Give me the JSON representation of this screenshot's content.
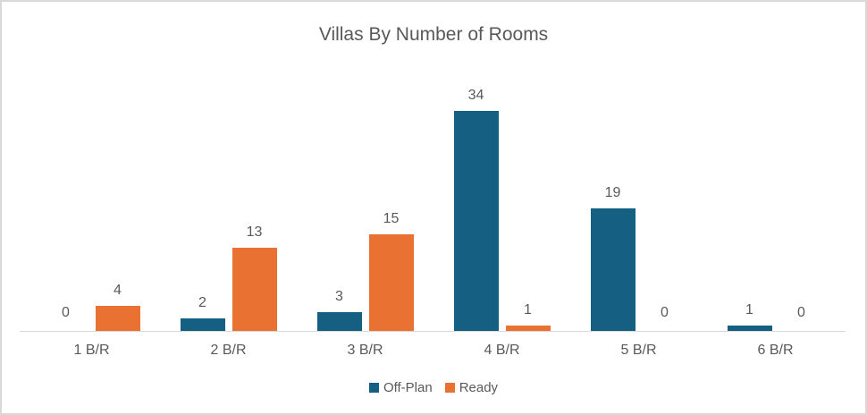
{
  "title": "Villas By Number of Rooms",
  "chart_data": {
    "type": "bar",
    "title": "Villas By Number of Rooms",
    "categories": [
      "1 B/R",
      "2 B/R",
      "3 B/R",
      "4 B/R",
      "5 B/R",
      "6 B/R"
    ],
    "series": [
      {
        "name": "Off-Plan",
        "color": "#156082",
        "values": [
          0,
          2,
          3,
          34,
          19,
          1
        ]
      },
      {
        "name": "Ready",
        "color": "#E97132",
        "values": [
          4,
          13,
          15,
          1,
          0,
          0
        ]
      }
    ],
    "xlabel": "",
    "ylabel": "",
    "ylim": [
      0,
      34
    ],
    "grid": false,
    "data_labels": true,
    "legend_position": "bottom",
    "text_color": "#595959",
    "axis_line_color": "#D9D9D9",
    "border_color": "#D9D9D9",
    "background": "#FFFFFF"
  }
}
